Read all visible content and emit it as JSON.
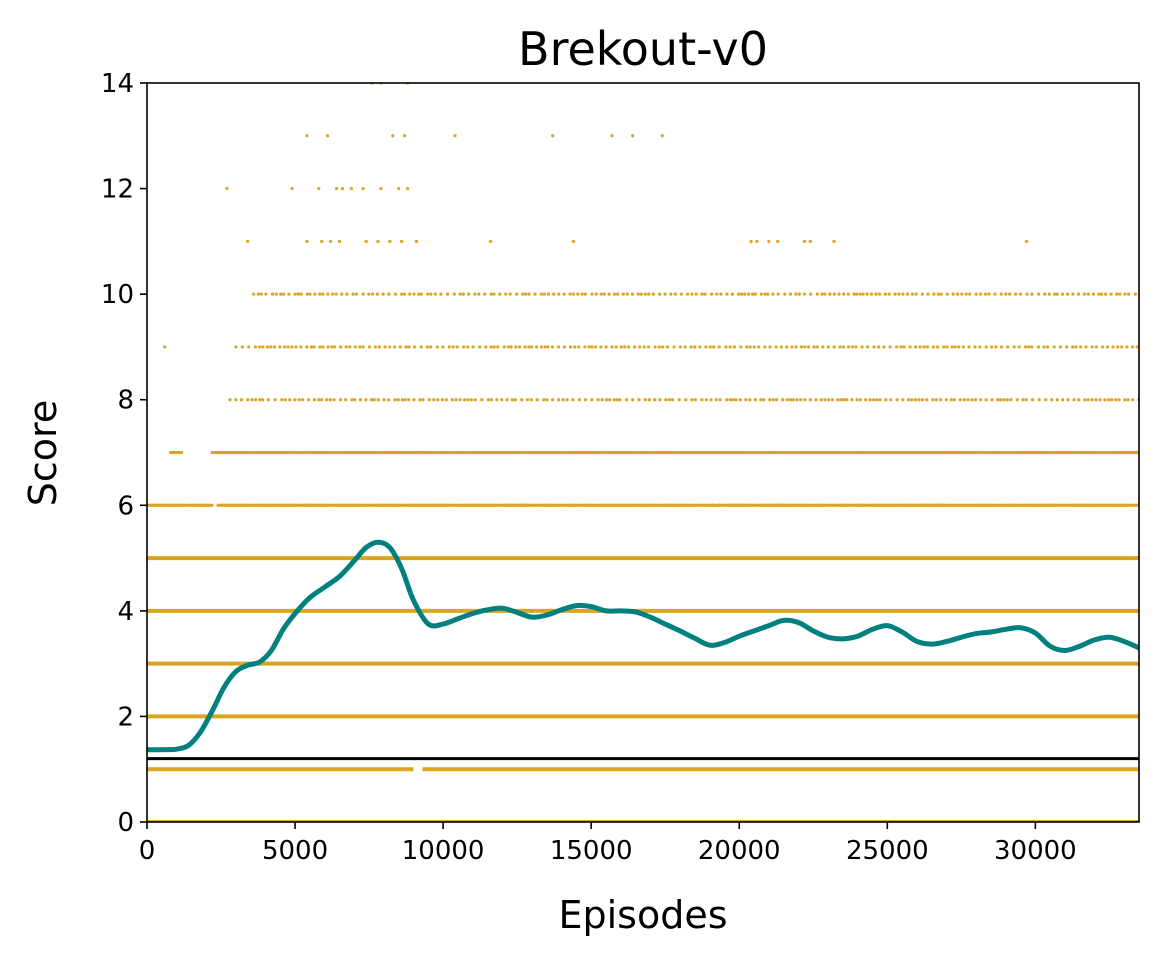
{
  "chart_data": {
    "type": "scatter",
    "title": "Brekout-v0",
    "xlabel": "Episodes",
    "ylabel": "Score",
    "xlim": [
      0,
      33500
    ],
    "ylim": [
      0,
      14
    ],
    "xticks": [
      0,
      5000,
      10000,
      15000,
      20000,
      25000,
      30000
    ],
    "yticks": [
      0,
      2,
      4,
      6,
      8,
      10,
      12,
      14
    ],
    "grid": false,
    "legend": "none",
    "colors": {
      "scatter": "#DAA520",
      "smooth": "#00807F",
      "baseline": "#000000"
    },
    "series": [
      {
        "kind": "scatter",
        "bands": [
          {
            "score": 0,
            "ranges": [
              [
                0,
                33500
              ]
            ],
            "density": "dense"
          },
          {
            "score": 1,
            "ranges": [
              [
                0,
                9000
              ],
              [
                9300,
                33500
              ]
            ],
            "density": "dense"
          },
          {
            "score": 2,
            "ranges": [
              [
                0,
                33500
              ]
            ],
            "density": "dense"
          },
          {
            "score": 3,
            "ranges": [
              [
                0,
                33500
              ]
            ],
            "density": "dense"
          },
          {
            "score": 4,
            "ranges": [
              [
                0,
                33500
              ]
            ],
            "density": "dense"
          },
          {
            "score": 5,
            "ranges": [
              [
                0,
                33500
              ]
            ],
            "density": "dense"
          },
          {
            "score": 6,
            "ranges": [
              [
                0,
                2200
              ],
              [
                2400,
                33500
              ]
            ],
            "density": "medium"
          },
          {
            "score": 7,
            "ranges": [
              [
                800,
                1200
              ],
              [
                2200,
                33500
              ]
            ],
            "density": "medium"
          },
          {
            "score": 8,
            "ranges": [
              [
                2800,
                33500
              ]
            ],
            "density": "sparse"
          },
          {
            "score": 9,
            "ranges": [
              [
                600,
                700
              ],
              [
                3000,
                33500
              ]
            ],
            "density": "sparse"
          },
          {
            "score": 10,
            "ranges": [
              [
                3600,
                33500
              ]
            ],
            "density": "sparse"
          },
          {
            "score": 11,
            "points": [
              3400,
              5400,
              5900,
              6200,
              6500,
              7400,
              7800,
              8200,
              8600,
              9100,
              11600,
              14400,
              20400,
              20600,
              21000,
              21300,
              22200,
              22400,
              23200,
              29700
            ]
          },
          {
            "score": 12,
            "points": [
              2700,
              4900,
              5800,
              6400,
              6600,
              6900,
              7300,
              7900,
              8500,
              8800
            ]
          },
          {
            "score": 13,
            "points": [
              5400,
              6100,
              8300,
              8700,
              10400,
              13700,
              15700,
              16400,
              17400
            ]
          },
          {
            "score": 14,
            "points": [
              7600,
              7900,
              8800
            ]
          }
        ]
      },
      {
        "kind": "line",
        "name": "",
        "x": [
          0,
          600,
          1000,
          1400,
          1800,
          2200,
          2600,
          3000,
          3400,
          3800,
          4200,
          4600,
          5000,
          5500,
          6000,
          6500,
          7000,
          7400,
          7800,
          8200,
          8600,
          9000,
          9500,
          10000,
          10500,
          11000,
          11500,
          12000,
          12500,
          13000,
          13500,
          14000,
          14500,
          15000,
          15500,
          16000,
          16500,
          17000,
          17500,
          18000,
          18500,
          19000,
          19500,
          20000,
          20500,
          21000,
          21500,
          22000,
          22500,
          23000,
          23500,
          24000,
          24500,
          25000,
          25500,
          26000,
          26500,
          27000,
          27500,
          28000,
          28500,
          29000,
          29500,
          30000,
          30500,
          31000,
          31500,
          32000,
          32500,
          33000,
          33500
        ],
        "y": [
          1.37,
          1.37,
          1.38,
          1.45,
          1.7,
          2.1,
          2.55,
          2.85,
          2.97,
          3.03,
          3.25,
          3.65,
          3.95,
          4.25,
          4.45,
          4.65,
          4.95,
          5.2,
          5.3,
          5.2,
          4.8,
          4.2,
          3.75,
          3.75,
          3.85,
          3.95,
          4.02,
          4.05,
          3.97,
          3.88,
          3.92,
          4.02,
          4.1,
          4.08,
          4.0,
          4.0,
          3.98,
          3.88,
          3.75,
          3.62,
          3.48,
          3.35,
          3.4,
          3.52,
          3.62,
          3.72,
          3.82,
          3.78,
          3.62,
          3.5,
          3.47,
          3.52,
          3.65,
          3.72,
          3.6,
          3.42,
          3.37,
          3.42,
          3.5,
          3.57,
          3.6,
          3.65,
          3.68,
          3.58,
          3.33,
          3.25,
          3.33,
          3.45,
          3.5,
          3.42,
          3.3
        ]
      },
      {
        "kind": "hline",
        "y": 1.2
      }
    ]
  }
}
